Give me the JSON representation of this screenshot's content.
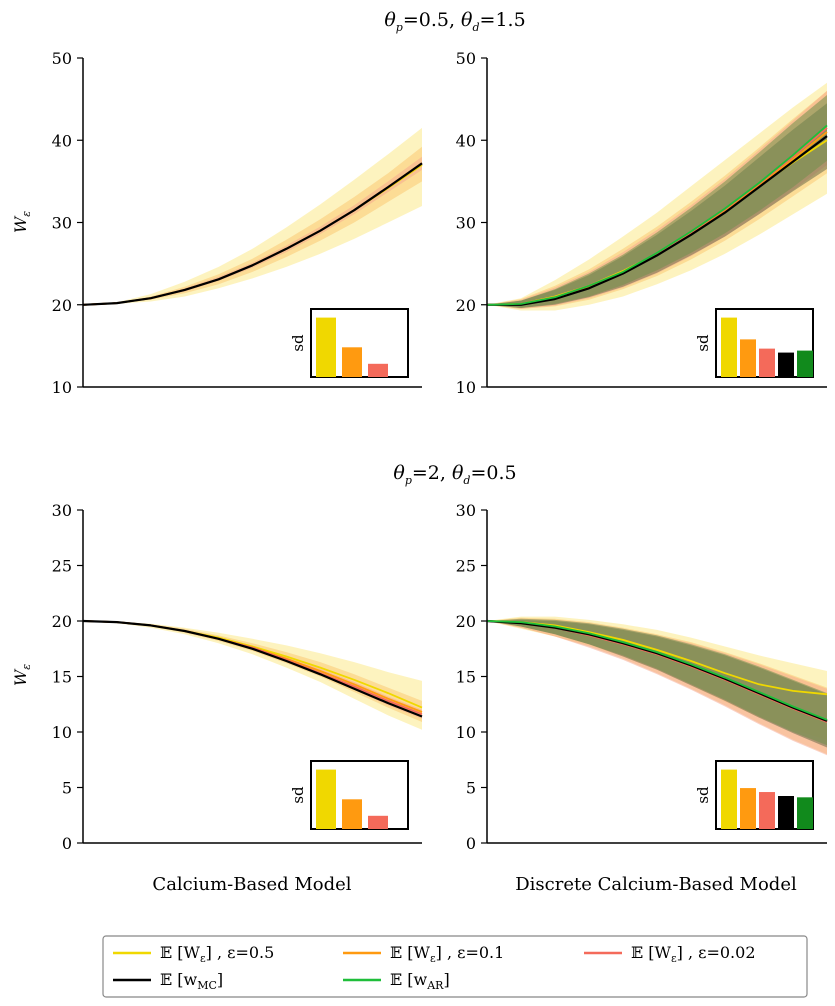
{
  "row_titles": [
    {
      "theta": "θ",
      "p_sub": "p",
      "p_val": "=0.5, ",
      "d_sub": "d",
      "d_val": "=1.5"
    },
    {
      "theta": "θ",
      "p_sub": "p",
      "p_val": "=2, ",
      "d_sub": "d",
      "d_val": "=0.5"
    }
  ],
  "ylabel": {
    "main": "W",
    "sub": "ε"
  },
  "column_labels": [
    "Calcium-Based Model",
    "Discrete Calcium-Based Model"
  ],
  "inset_label": "sd",
  "legend": [
    {
      "id": "e05",
      "prefix": "𝔼 [W",
      "sub": "ε",
      "suffix": "] , ε=0.5",
      "color": "#f0d800"
    },
    {
      "id": "e01",
      "prefix": "𝔼 [W",
      "sub": "ε",
      "suffix": "] , ε=0.1",
      "color": "#ff9a10"
    },
    {
      "id": "e002",
      "prefix": "𝔼 [W",
      "sub": "ε",
      "suffix": "] , ε=0.02",
      "color": "#f46a5a"
    },
    {
      "id": "mc",
      "prefix": "𝔼 [w",
      "sub": "MC",
      "suffix": "]",
      "color": "#000000"
    },
    {
      "id": "ar",
      "prefix": "𝔼 [w",
      "sub": "AR",
      "suffix": "]",
      "color": "#1fbe3a"
    }
  ],
  "chart_data": [
    {
      "id": "top-left",
      "type": "line",
      "row": 0,
      "col": 0,
      "ylim": [
        10,
        50
      ],
      "yticks": [
        10,
        20,
        30,
        40,
        50
      ],
      "x": [
        0,
        0.1,
        0.2,
        0.3,
        0.4,
        0.5,
        0.6,
        0.7,
        0.8,
        0.9,
        1.0
      ],
      "series": [
        {
          "key": "e05",
          "values": [
            20,
            20.2,
            20.8,
            21.8,
            23.1,
            24.8,
            26.8,
            29.0,
            31.5,
            34.2,
            37.0
          ],
          "band": [
            [
              20,
              20.1,
              20.4,
              21.0,
              22.0,
              23.2,
              24.6,
              26.2,
              28.0,
              30.0,
              32.0
            ],
            [
              20,
              20.3,
              21.3,
              22.8,
              24.6,
              26.8,
              29.4,
              32.2,
              35.2,
              38.3,
              41.5
            ]
          ]
        },
        {
          "key": "e01",
          "values": [
            20,
            20.2,
            20.8,
            21.8,
            23.1,
            24.8,
            26.8,
            29.0,
            31.5,
            34.3,
            37.2
          ],
          "band": [
            [
              20,
              20.15,
              20.6,
              21.4,
              22.5,
              24.0,
              25.8,
              27.8,
              30.0,
              32.5,
              35.0
            ],
            [
              20,
              20.25,
              21.0,
              22.2,
              23.7,
              25.6,
              27.9,
              30.4,
              33.1,
              36.0,
              39.2
            ]
          ]
        },
        {
          "key": "e002",
          "values": [
            20,
            20.2,
            20.8,
            21.8,
            23.1,
            24.8,
            26.8,
            29.0,
            31.5,
            34.3,
            37.2
          ],
          "band": [
            [
              20,
              20.2,
              20.7,
              21.6,
              22.9,
              24.5,
              26.4,
              28.6,
              31.0,
              33.7,
              36.4
            ],
            [
              20,
              20.2,
              20.9,
              22.0,
              23.4,
              25.1,
              27.2,
              29.5,
              32.1,
              35.0,
              38.0
            ]
          ]
        },
        {
          "key": "mc",
          "values": [
            20,
            20.2,
            20.8,
            21.8,
            23.1,
            24.8,
            26.8,
            29.0,
            31.5,
            34.3,
            37.2
          ]
        }
      ],
      "inset": {
        "values": [
          0.9,
          0.45,
          0.2
        ],
        "colors": [
          "#f0d800",
          "#ff9a10",
          "#f46a5a"
        ]
      }
    },
    {
      "id": "top-right",
      "type": "line",
      "row": 0,
      "col": 1,
      "ylim": [
        10,
        50
      ],
      "yticks": [
        10,
        20,
        30,
        40,
        50
      ],
      "x": [
        0,
        0.1,
        0.2,
        0.3,
        0.4,
        0.5,
        0.6,
        0.7,
        0.8,
        0.9,
        1.0
      ],
      "series": [
        {
          "key": "e05",
          "values": [
            20,
            20.1,
            21.0,
            22.3,
            24.1,
            26.2,
            28.8,
            31.6,
            34.4,
            37.3,
            40.0
          ],
          "band": [
            [
              20,
              19.3,
              19.3,
              20.0,
              21.0,
              22.5,
              24.2,
              26.2,
              28.5,
              31.0,
              33.5
            ],
            [
              20,
              20.8,
              23.0,
              25.5,
              28.3,
              31.2,
              34.4,
              37.6,
              40.8,
              44.0,
              47.0
            ]
          ]
        },
        {
          "key": "e01",
          "values": [
            20,
            20.1,
            20.9,
            22.2,
            23.9,
            26.1,
            28.7,
            31.5,
            34.5,
            37.7,
            41.0
          ],
          "band": [
            [
              20,
              19.5,
              19.8,
              20.6,
              21.9,
              23.5,
              25.5,
              27.8,
              30.4,
              33.2,
              36.0
            ],
            [
              20,
              20.7,
              22.3,
              24.3,
              26.8,
              29.5,
              32.5,
              35.7,
              39.1,
              42.6,
              46.0
            ]
          ]
        },
        {
          "key": "e002",
          "values": [
            20,
            20.1,
            20.9,
            22.3,
            24.0,
            26.2,
            28.8,
            31.6,
            34.7,
            38.0,
            41.5
          ],
          "band": [
            [
              20,
              19.5,
              19.9,
              20.8,
              22.1,
              23.8,
              25.9,
              28.3,
              31.0,
              33.9,
              37.0
            ],
            [
              20,
              20.6,
              22.1,
              24.0,
              26.4,
              29.1,
              32.1,
              35.3,
              38.8,
              42.4,
              46.0
            ]
          ]
        },
        {
          "key": "mc",
          "values": [
            20,
            20.0,
            20.7,
            22.0,
            23.8,
            26.0,
            28.5,
            31.2,
            34.3,
            37.4,
            40.5
          ],
          "band": [
            [
              20,
              19.6,
              20.0,
              20.9,
              22.2,
              23.9,
              26.0,
              28.3,
              31.0,
              33.8,
              36.5
            ],
            [
              20,
              20.5,
              21.8,
              23.6,
              25.9,
              28.5,
              31.4,
              34.5,
              37.9,
              41.3,
              44.5
            ]
          ]
        },
        {
          "key": "ar",
          "values": [
            20,
            20.1,
            20.9,
            22.3,
            24.0,
            26.3,
            28.9,
            31.7,
            34.8,
            38.2,
            41.8
          ],
          "band": [
            [
              20,
              19.6,
              20.1,
              21.0,
              22.4,
              24.2,
              26.3,
              28.7,
              31.4,
              34.3,
              37.5
            ],
            [
              20,
              20.5,
              21.9,
              23.8,
              26.1,
              28.8,
              31.8,
              35.0,
              38.5,
              42.1,
              45.5
            ]
          ]
        }
      ],
      "inset": {
        "values": [
          0.9,
          0.57,
          0.43,
          0.37,
          0.4
        ],
        "colors": [
          "#f0d800",
          "#ff9a10",
          "#f46a5a",
          "#000000",
          "#118a1c"
        ]
      }
    },
    {
      "id": "bottom-left",
      "type": "line",
      "row": 1,
      "col": 0,
      "ylim": [
        0,
        30
      ],
      "yticks": [
        0,
        5,
        10,
        15,
        20,
        25,
        30
      ],
      "x": [
        0,
        0.1,
        0.2,
        0.3,
        0.4,
        0.5,
        0.6,
        0.7,
        0.8,
        0.9,
        1.0
      ],
      "series": [
        {
          "key": "e05",
          "values": [
            20,
            19.9,
            19.6,
            19.1,
            18.5,
            17.7,
            16.8,
            15.8,
            14.7,
            13.5,
            12.2
          ],
          "band": [
            [
              20,
              19.8,
              19.4,
              18.8,
              18.0,
              17.0,
              15.8,
              14.5,
              13.0,
              11.5,
              10.2
            ],
            [
              20,
              19.95,
              19.75,
              19.4,
              18.95,
              18.4,
              17.8,
              17.1,
              16.3,
              15.4,
              14.6
            ]
          ]
        },
        {
          "key": "e01",
          "values": [
            20,
            19.9,
            19.6,
            19.1,
            18.4,
            17.6,
            16.6,
            15.5,
            14.3,
            13.0,
            11.8
          ],
          "band": [
            [
              20,
              19.85,
              19.5,
              18.95,
              18.2,
              17.3,
              16.2,
              15.0,
              13.6,
              12.2,
              10.9
            ],
            [
              20,
              19.9,
              19.7,
              19.3,
              18.7,
              18.0,
              17.2,
              16.3,
              15.2,
              14.0,
              12.8
            ]
          ]
        },
        {
          "key": "e002",
          "values": [
            20,
            19.9,
            19.6,
            19.1,
            18.4,
            17.6,
            16.5,
            15.3,
            14.1,
            12.8,
            11.6
          ],
          "band": [
            [
              20,
              19.9,
              19.55,
              19.0,
              18.3,
              17.4,
              16.3,
              15.1,
              13.8,
              12.4,
              11.2
            ],
            [
              20,
              19.9,
              19.65,
              19.2,
              18.5,
              17.7,
              16.8,
              15.7,
              14.5,
              13.2,
              12.0
            ]
          ]
        },
        {
          "key": "mc",
          "values": [
            20,
            19.9,
            19.6,
            19.1,
            18.4,
            17.5,
            16.4,
            15.2,
            13.9,
            12.6,
            11.4
          ]
        }
      ],
      "inset": {
        "values": [
          0.9,
          0.45,
          0.2
        ],
        "colors": [
          "#f0d800",
          "#ff9a10",
          "#f46a5a"
        ]
      }
    },
    {
      "id": "bottom-right",
      "type": "line",
      "row": 1,
      "col": 1,
      "ylim": [
        0,
        30
      ],
      "yticks": [
        0,
        5,
        10,
        15,
        20,
        25,
        30
      ],
      "x": [
        0,
        0.1,
        0.2,
        0.3,
        0.4,
        0.5,
        0.6,
        0.7,
        0.8,
        0.9,
        1.0
      ],
      "series": [
        {
          "key": "e05",
          "values": [
            20,
            19.9,
            19.6,
            19.0,
            18.3,
            17.4,
            16.4,
            15.3,
            14.3,
            13.7,
            13.4
          ],
          "band": [
            [
              20,
              19.3,
              18.6,
              17.8,
              16.8,
              15.6,
              14.2,
              12.7,
              11.3,
              10.2,
              9.3
            ],
            [
              20,
              20.4,
              20.4,
              20.1,
              19.7,
              19.2,
              18.5,
              17.7,
              16.9,
              16.2,
              15.5
            ]
          ]
        },
        {
          "key": "e01",
          "values": [
            20,
            19.8,
            19.4,
            18.8,
            18.0,
            17.1,
            16.0,
            14.8,
            13.5,
            12.2,
            11.0
          ],
          "band": [
            [
              20,
              19.4,
              18.6,
              17.7,
              16.6,
              15.3,
              13.9,
              12.4,
              10.8,
              9.3,
              8.0
            ],
            [
              20,
              20.3,
              20.2,
              19.9,
              19.4,
              18.8,
              18.1,
              17.2,
              16.2,
              15.1,
              14.0
            ]
          ]
        },
        {
          "key": "e002",
          "values": [
            20,
            19.8,
            19.4,
            18.7,
            17.9,
            17.0,
            15.9,
            14.7,
            13.4,
            12.1,
            10.9
          ],
          "band": [
            [
              20,
              19.4,
              18.6,
              17.6,
              16.5,
              15.2,
              13.8,
              12.3,
              10.7,
              9.2,
              7.9
            ],
            [
              20,
              20.2,
              20.1,
              19.8,
              19.3,
              18.7,
              18.0,
              17.1,
              16.1,
              15.0,
              13.9
            ]
          ]
        },
        {
          "key": "mc",
          "values": [
            20,
            19.8,
            19.4,
            18.8,
            18.0,
            17.1,
            16.0,
            14.8,
            13.5,
            12.2,
            11.0
          ],
          "band": [
            [
              20,
              19.5,
              18.8,
              17.9,
              16.8,
              15.6,
              14.2,
              12.8,
              11.3,
              9.9,
              8.6
            ],
            [
              20,
              20.1,
              20.0,
              19.7,
              19.2,
              18.6,
              17.8,
              16.9,
              15.8,
              14.6,
              13.4
            ]
          ]
        },
        {
          "key": "ar",
          "values": [
            20,
            19.9,
            19.5,
            18.9,
            18.1,
            17.2,
            16.1,
            14.9,
            13.6,
            12.3,
            11.1
          ],
          "band": [
            [
              20,
              19.5,
              18.8,
              17.9,
              16.9,
              15.7,
              14.3,
              12.9,
              11.4,
              10.0,
              8.8
            ],
            [
              20,
              20.2,
              20.1,
              19.8,
              19.3,
              18.7,
              17.9,
              17.0,
              15.9,
              14.7,
              13.5
            ]
          ]
        }
      ],
      "inset": {
        "values": [
          0.9,
          0.62,
          0.56,
          0.5,
          0.48
        ],
        "colors": [
          "#f0d800",
          "#ff9a10",
          "#f46a5a",
          "#000000",
          "#118a1c"
        ]
      }
    }
  ]
}
